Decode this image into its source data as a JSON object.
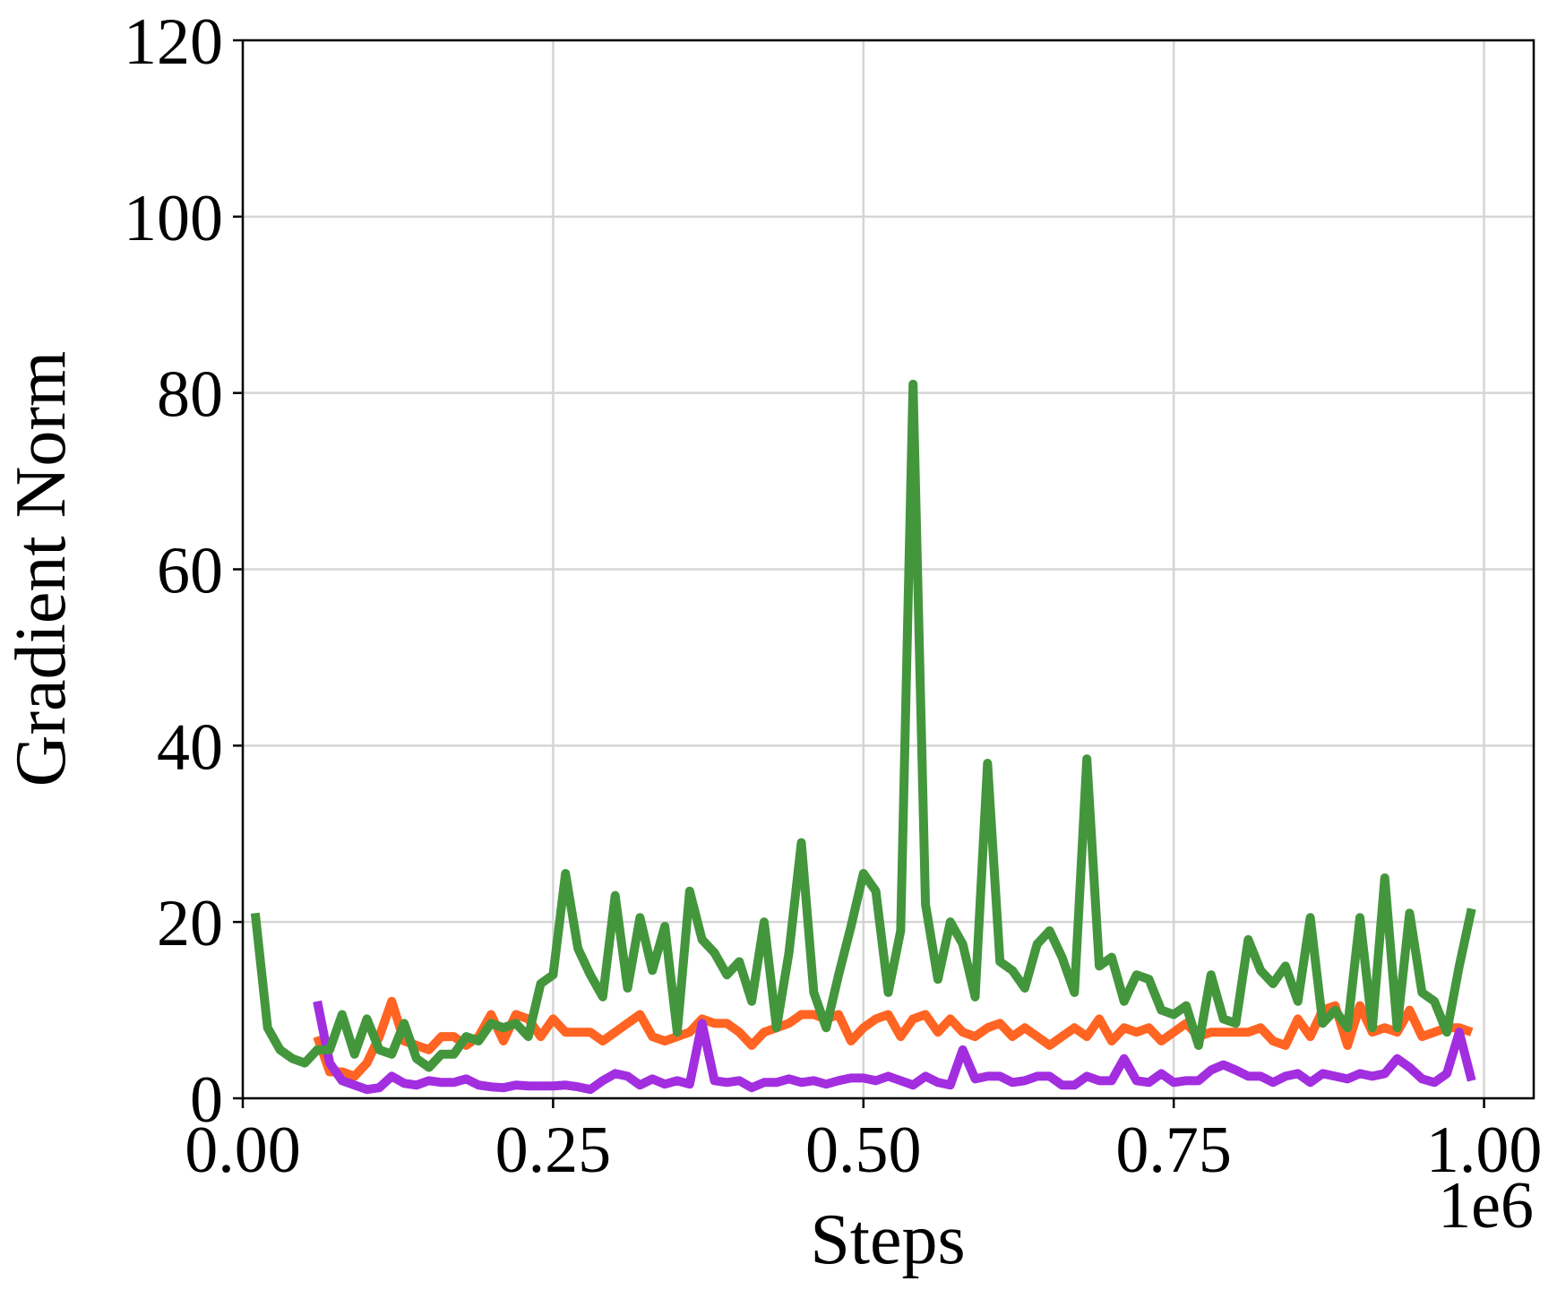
{
  "chart_data": {
    "type": "line",
    "x_label": "Steps",
    "y_label": "Gradient Norm",
    "x_offset_label": "1e6",
    "xlim": [
      0,
      1.04
    ],
    "ylim": [
      0,
      120
    ],
    "xticks": [
      {
        "value": 0,
        "label": "0.00"
      },
      {
        "value": 0.25,
        "label": "0.25"
      },
      {
        "value": 0.5,
        "label": "0.50"
      },
      {
        "value": 0.75,
        "label": "0.75"
      },
      {
        "value": 1,
        "label": "1.00"
      }
    ],
    "yticks": [
      0,
      20,
      40,
      60,
      80,
      100,
      120
    ],
    "grid": true,
    "x": [
      0.01,
      0.02,
      0.03,
      0.04,
      0.05,
      0.06,
      0.07,
      0.08,
      0.09,
      0.1,
      0.11,
      0.12,
      0.13,
      0.14,
      0.15,
      0.16,
      0.17,
      0.18,
      0.19,
      0.2,
      0.21,
      0.22,
      0.23,
      0.24,
      0.25,
      0.26,
      0.27,
      0.28,
      0.29,
      0.3,
      0.31,
      0.32,
      0.33,
      0.34,
      0.35,
      0.36,
      0.37,
      0.38,
      0.39,
      0.4,
      0.41,
      0.42,
      0.43,
      0.44,
      0.45,
      0.46,
      0.47,
      0.48,
      0.49,
      0.5,
      0.51,
      0.52,
      0.53,
      0.54,
      0.55,
      0.56,
      0.57,
      0.58,
      0.59,
      0.6,
      0.61,
      0.62,
      0.63,
      0.64,
      0.65,
      0.66,
      0.67,
      0.68,
      0.69,
      0.7,
      0.71,
      0.72,
      0.73,
      0.74,
      0.75,
      0.76,
      0.77,
      0.78,
      0.79,
      0.8,
      0.81,
      0.82,
      0.83,
      0.84,
      0.85,
      0.86,
      0.87,
      0.88,
      0.89,
      0.9,
      0.91,
      0.92,
      0.93,
      0.94,
      0.95,
      0.96,
      0.97,
      0.98,
      0.99
    ],
    "series": [
      {
        "color": "#ff6422",
        "values": [
          null,
          null,
          null,
          null,
          null,
          7,
          3,
          3,
          2.5,
          4,
          7,
          11,
          6.5,
          6,
          5.5,
          7,
          7,
          6,
          7,
          9.5,
          6.5,
          9.5,
          9,
          7,
          9,
          7.5,
          7.5,
          7.5,
          6.5,
          7.5,
          8.5,
          9.5,
          7,
          6.5,
          7,
          7.5,
          9,
          8.5,
          8.5,
          7.5,
          6,
          7.5,
          8,
          8.5,
          9.5,
          9.5,
          9,
          9.5,
          6.5,
          8,
          9,
          9.5,
          7,
          9,
          9.5,
          7.5,
          9,
          7.5,
          7,
          8,
          8.5,
          7,
          8,
          7,
          6,
          7,
          8,
          7,
          9,
          6.5,
          8,
          7.5,
          8,
          6.5,
          7.5,
          8.5,
          7,
          7.5,
          7.5,
          7.5,
          7.5,
          8,
          6.5,
          6,
          9,
          7,
          10,
          10.5,
          6,
          10.5,
          7.5,
          8,
          7.5,
          10,
          7,
          7.5,
          8,
          8,
          7.5
        ]
      },
      {
        "color": "#a22ee0",
        "values": [
          null,
          null,
          null,
          null,
          null,
          11,
          4,
          2,
          1.5,
          1,
          1.2,
          2.5,
          1.7,
          1.5,
          2,
          1.8,
          1.8,
          2.2,
          1.5,
          1.3,
          1.2,
          1.5,
          1.4,
          1.4,
          1.4,
          1.5,
          1.3,
          1,
          2,
          2.8,
          2.5,
          1.5,
          2.2,
          1.6,
          2,
          1.6,
          8.5,
          2,
          1.8,
          2,
          1.2,
          1.8,
          1.8,
          2.2,
          1.8,
          2,
          1.6,
          2,
          2.3,
          2.3,
          2,
          2.5,
          2,
          1.5,
          2.5,
          1.8,
          1.5,
          5.5,
          2.2,
          2.5,
          2.5,
          1.8,
          2,
          2.5,
          2.5,
          1.5,
          1.5,
          2.5,
          2,
          2,
          4.5,
          2,
          1.8,
          2.8,
          1.8,
          2,
          2,
          3.2,
          3.8,
          3.2,
          2.5,
          2.5,
          1.8,
          2.5,
          2.8,
          1.8,
          2.8,
          2.5,
          2.2,
          2.8,
          2.5,
          2.8,
          4.5,
          3.5,
          2.2,
          1.8,
          2.8,
          7.5,
          2
        ]
      },
      {
        "color": "#43963c",
        "values": [
          21,
          8,
          5.5,
          4.5,
          4,
          5.5,
          5.5,
          9.5,
          5,
          9,
          5.5,
          5,
          8.5,
          4.5,
          3.5,
          5,
          5,
          7,
          6.5,
          8.5,
          8,
          8.5,
          7,
          13,
          14,
          25.5,
          17,
          14,
          11.5,
          23,
          12.5,
          20.5,
          14.5,
          19.5,
          7.5,
          23.5,
          18,
          16.5,
          14,
          15.5,
          11,
          20,
          8,
          16.5,
          29,
          12,
          8,
          14,
          19.5,
          25.5,
          23.5,
          12,
          19,
          81,
          22,
          13.5,
          20,
          17.5,
          11.5,
          38,
          15.5,
          14.5,
          12.5,
          17.5,
          19,
          16,
          12,
          38.5,
          15,
          16,
          11,
          14,
          13.5,
          10,
          9.5,
          10.5,
          6,
          14,
          9,
          8.5,
          18,
          14.5,
          13,
          15,
          11,
          20.5,
          8.5,
          10,
          8,
          20.5,
          8,
          25,
          8,
          21,
          12,
          11,
          7.5,
          15,
          21.5
        ]
      }
    ]
  }
}
